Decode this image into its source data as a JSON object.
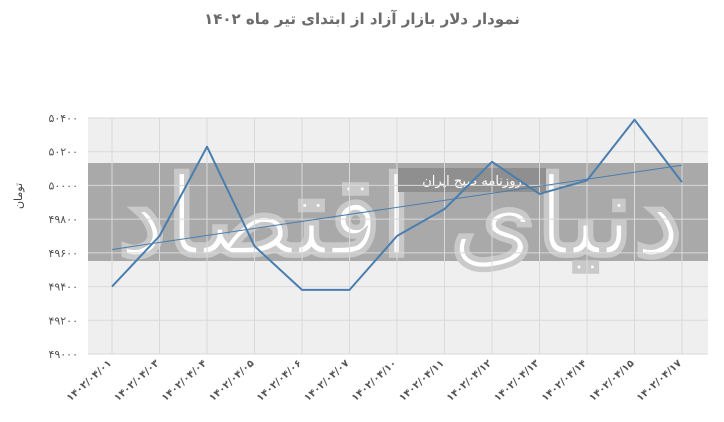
{
  "chart_data": {
    "type": "line",
    "title": "نمودار دلار بازار آزاد از ابتدای تیر ماه ۱۴۰۲",
    "xlabel": "",
    "ylabel": "تومان",
    "ylim": [
      49000,
      50400
    ],
    "yticks": [
      49000,
      49200,
      49400,
      49600,
      49800,
      50000,
      50200,
      50400
    ],
    "ytick_labels": [
      "۴۹۰۰۰",
      "۴۹۲۰۰",
      "۴۹۴۰۰",
      "۴۹۶۰۰",
      "۴۹۸۰۰",
      "۵۰۰۰۰",
      "۵۰۲۰۰",
      "۵۰۴۰۰"
    ],
    "categories": [
      "۱۴۰۲/۰۴/۰۱",
      "۱۴۰۲/۰۴/۰۳",
      "۱۴۰۲/۰۴/۰۴",
      "۱۴۰۲/۰۴/۰۵",
      "۱۴۰۲/۰۴/۰۶",
      "۱۴۰۲/۰۴/۰۷",
      "۱۴۰۲/۰۴/۱۰",
      "۱۴۰۲/۰۴/۱۱",
      "۱۴۰۲/۰۴/۱۲",
      "۱۴۰۲/۰۴/۱۳",
      "۱۴۰۲/۰۴/۱۴",
      "۱۴۰۲/۰۴/۱۵",
      "۱۴۰۲/۰۴/۱۷"
    ],
    "series": [
      {
        "values": [
          49400,
          49700,
          50230,
          49640,
          49380,
          49380,
          49700,
          49860,
          50140,
          49950,
          50030,
          50390,
          50020
        ]
      }
    ],
    "trendline": {
      "type": "linear",
      "start": 49620,
      "end": 50120
    },
    "grid": true,
    "legend": "none",
    "colors": {
      "line": "#4a7eae",
      "trend": "#4a7eae",
      "grid": "#d9d9d9",
      "watermark_band": "#a9a9a9",
      "plot_bg": "#efefef"
    }
  },
  "watermark": {
    "main_text": "دنیای اقتصاد",
    "sub_text": "روزنامه صبح ایران"
  }
}
